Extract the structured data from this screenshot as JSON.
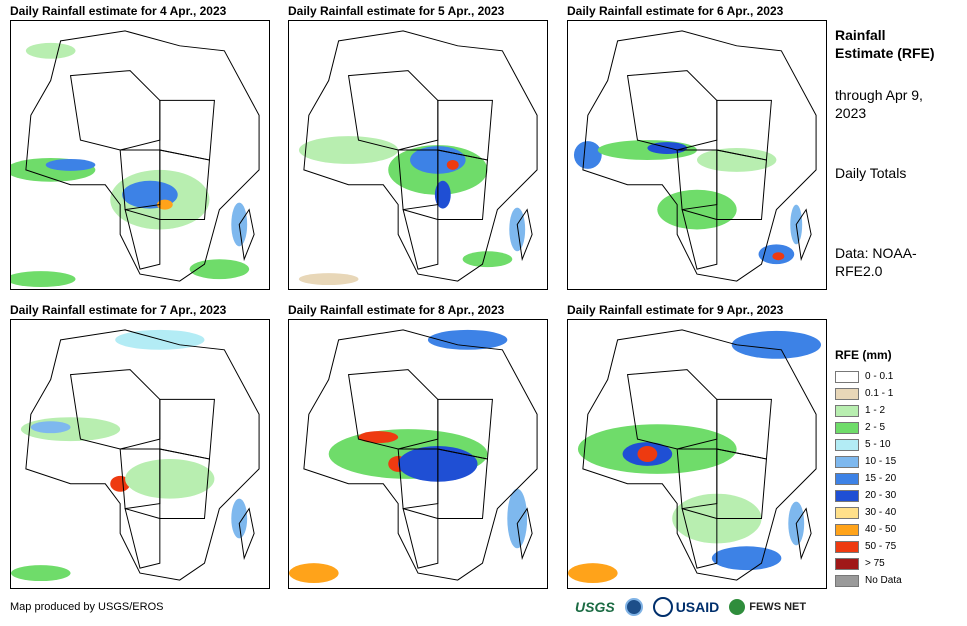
{
  "panels": [
    {
      "title": "Daily Rainfall estimate for 4 Apr., 2023"
    },
    {
      "title": "Daily Rainfall estimate for 5 Apr., 2023"
    },
    {
      "title": "Daily Rainfall estimate for 6 Apr., 2023"
    },
    {
      "title": "Daily Rainfall estimate for 7 Apr., 2023"
    },
    {
      "title": "Daily Rainfall estimate for 8 Apr., 2023"
    },
    {
      "title": "Daily Rainfall estimate for 9 Apr., 2023"
    }
  ],
  "side": {
    "title": "Rainfall Estimate (RFE)",
    "through": "through Apr 9, 2023",
    "daily": "Daily Totals",
    "data": "Data: NOAA-RFE2.0"
  },
  "legend": {
    "title": "RFE (mm)",
    "items": [
      {
        "label": "0 - 0.1",
        "color": "#ffffff"
      },
      {
        "label": "0.1 - 1",
        "color": "#e8d7b8"
      },
      {
        "label": "1 - 2",
        "color": "#b8eeb0"
      },
      {
        "label": "2 - 5",
        "color": "#6fdc6a"
      },
      {
        "label": "5 - 10",
        "color": "#b3ecf5"
      },
      {
        "label": "10 - 15",
        "color": "#7eb8ee"
      },
      {
        "label": "15 - 20",
        "color": "#3d82e6"
      },
      {
        "label": "20 - 30",
        "color": "#1f4fd4"
      },
      {
        "label": "30 - 40",
        "color": "#ffe08a"
      },
      {
        "label": "40 - 50",
        "color": "#ffa31a"
      },
      {
        "label": "50 - 75",
        "color": "#ee3a10"
      },
      {
        "label": "> 75",
        "color": "#a01818"
      },
      {
        "label": "No Data",
        "color": "#9a9a9a"
      }
    ]
  },
  "credit": "Map produced by USGS/EROS",
  "logos": {
    "usgs": "USGS",
    "usaid": "USAID",
    "fews": "FEWS NET"
  }
}
